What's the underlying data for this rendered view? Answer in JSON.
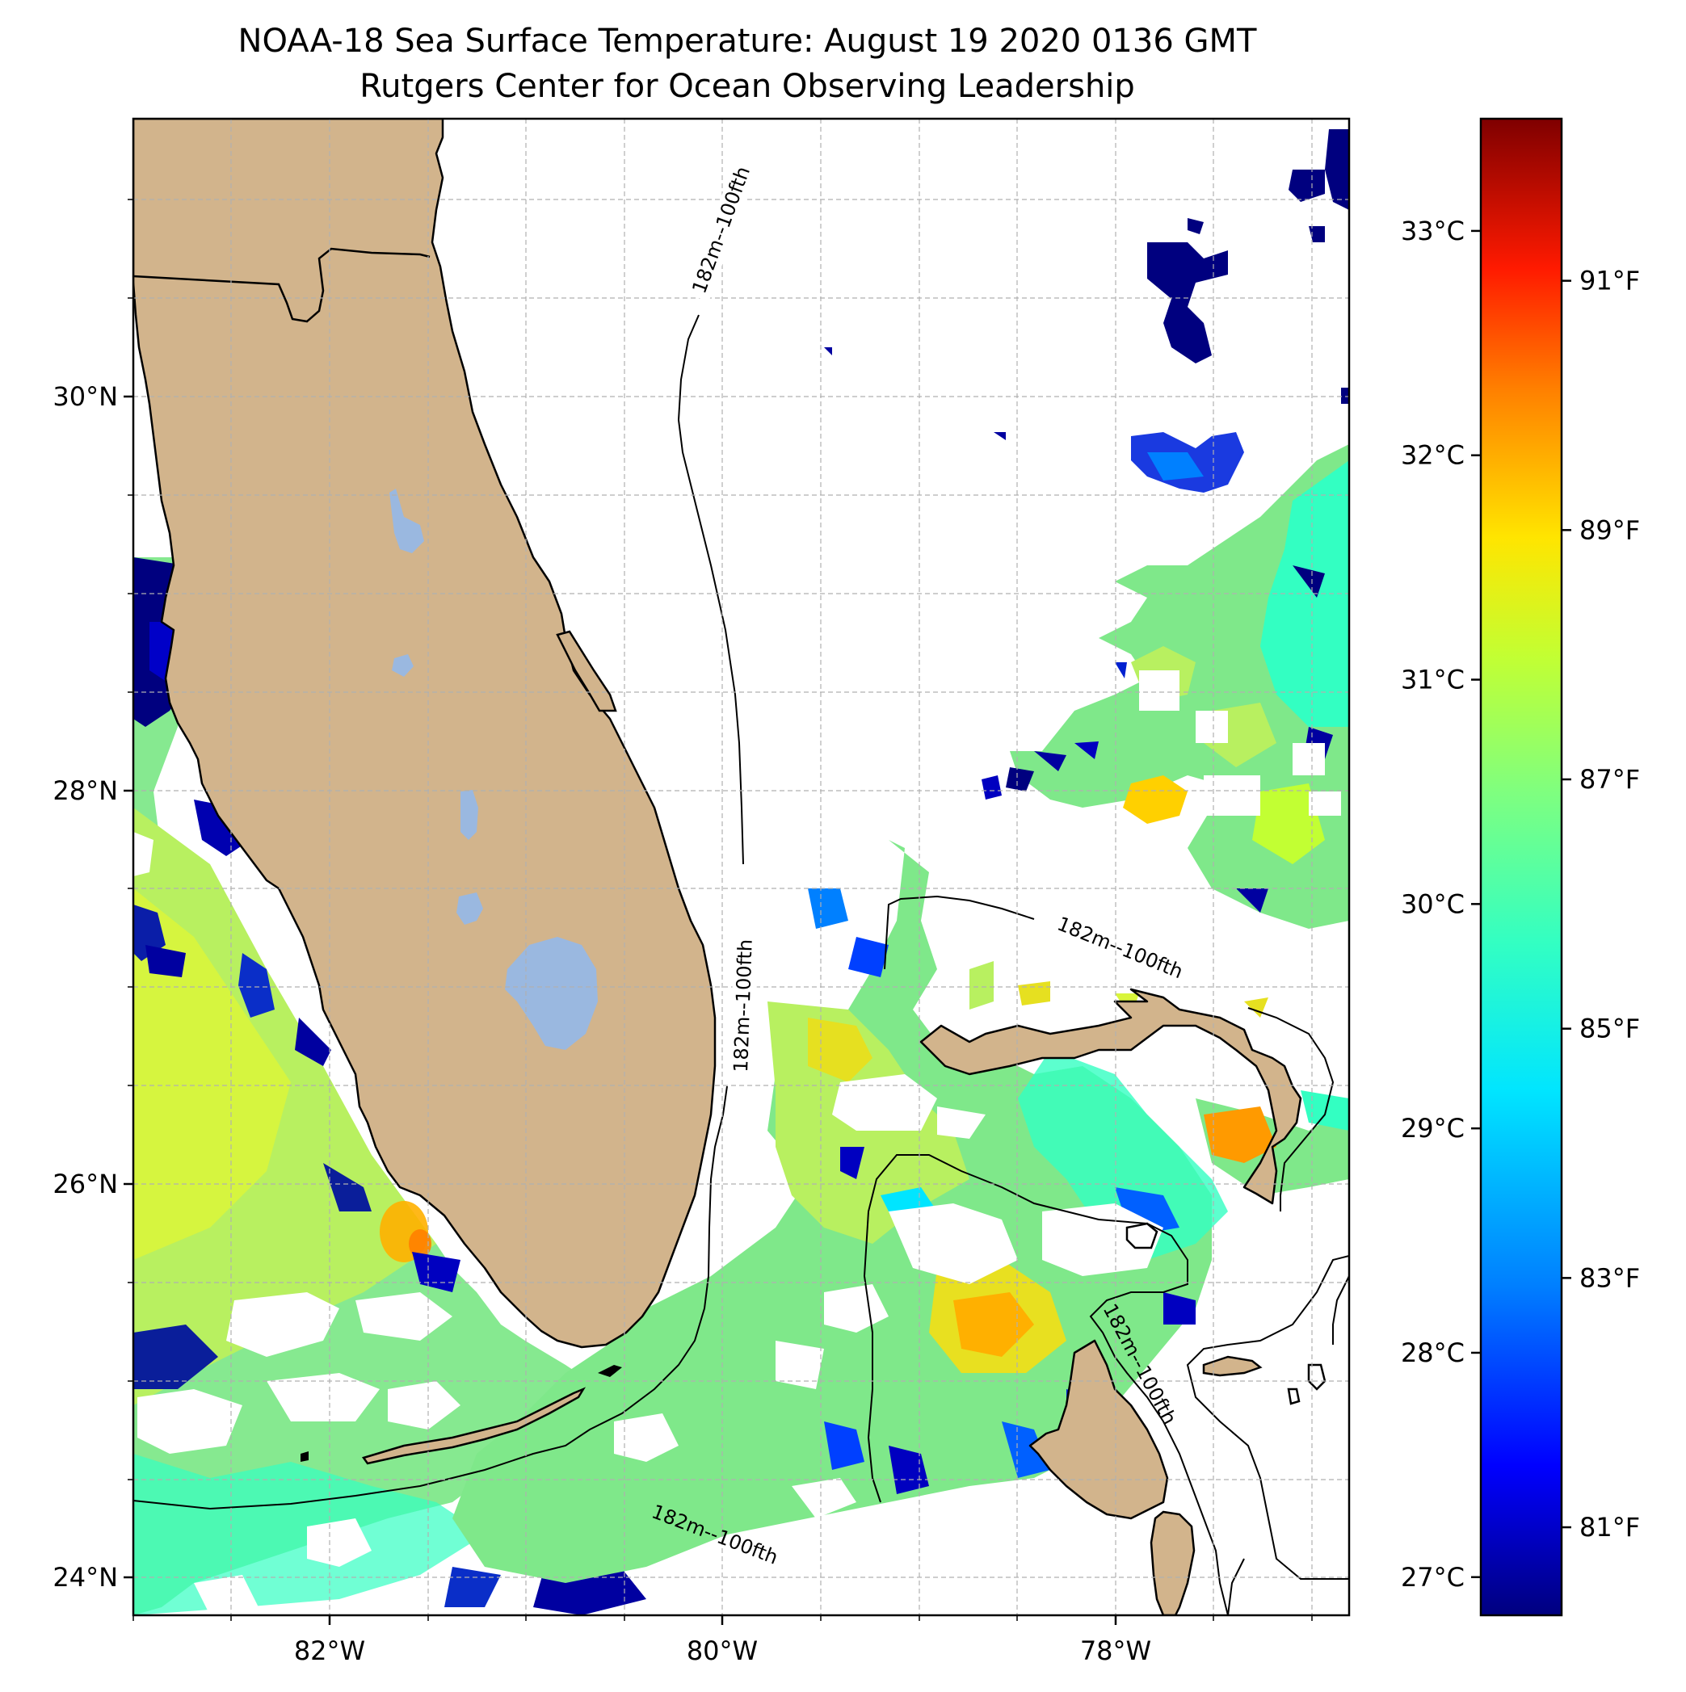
{
  "title": {
    "line1": "NOAA-18 Sea Surface Temperature: August 19 2020 0136 GMT",
    "line2": "Rutgers Center for Ocean Observing Leadership"
  },
  "map": {
    "lon_range": [
      -83.0,
      -76.8
    ],
    "lat_range": [
      23.8,
      31.4
    ],
    "lat_ticks": [
      {
        "value": 30,
        "label": "30°N"
      },
      {
        "value": 28,
        "label": "28°N"
      },
      {
        "value": 26,
        "label": "26°N"
      },
      {
        "value": 24,
        "label": "24°N"
      }
    ],
    "lon_ticks": [
      {
        "value": -82,
        "label": "82°W"
      },
      {
        "value": -80,
        "label": "80°W"
      },
      {
        "value": -78,
        "label": "78°W"
      }
    ],
    "isobath_labels": [
      "182m--100fth",
      "182m--100fth",
      "182m--100fth",
      "182m--100fth",
      "182m--100fth"
    ],
    "colors": {
      "land": "#d2b48c",
      "lakes": "#9ab8e0",
      "coast": "#000000",
      "grid": "#b0b0b0"
    }
  },
  "colorbar": {
    "celsius_range": [
      26.83,
      33.5
    ],
    "celsius_ticks": [
      {
        "value": 33,
        "label": "33°C"
      },
      {
        "value": 32,
        "label": "32°C"
      },
      {
        "value": 31,
        "label": "31°C"
      },
      {
        "value": 30,
        "label": "30°C"
      },
      {
        "value": 29,
        "label": "29°C"
      },
      {
        "value": 28,
        "label": "28°C"
      },
      {
        "value": 27,
        "label": "27°C"
      }
    ],
    "fahrenheit_ticks": [
      {
        "value": 91,
        "label": "91°F"
      },
      {
        "value": 89,
        "label": "89°F"
      },
      {
        "value": 87,
        "label": "87°F"
      },
      {
        "value": 85,
        "label": "85°F"
      },
      {
        "value": 83,
        "label": "83°F"
      },
      {
        "value": 81,
        "label": "81°F"
      }
    ],
    "stops": [
      "#00007f",
      "#0000ff",
      "#007fff",
      "#00e5ff",
      "#33ffc2",
      "#7fff7f",
      "#c2ff33",
      "#ffe500",
      "#ff7f00",
      "#ff1a00",
      "#7f0000"
    ]
  }
}
